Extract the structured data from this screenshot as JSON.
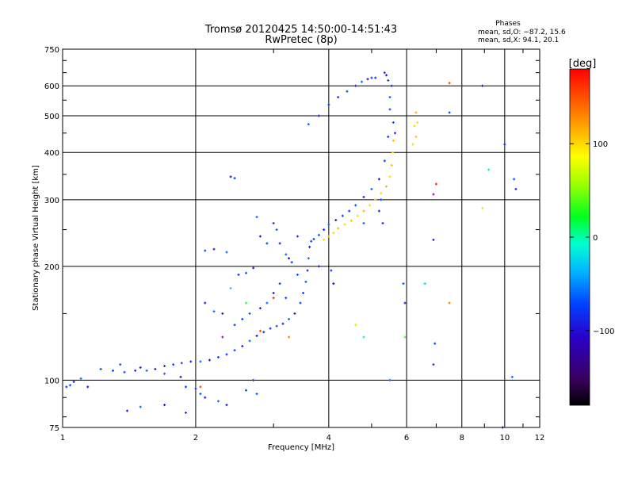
{
  "chart_data": {
    "type": "scatter",
    "title": "Tromsø 20120425 14:50:00-14:51:43",
    "subtitle": "RwPretec (8p)",
    "xlabel": "Frequency [MHz]",
    "ylabel": "Stationary phase Virtual Height [km]",
    "x_scale": "log",
    "y_scale": "log",
    "xlim": [
      1,
      12
    ],
    "ylim": [
      75,
      750
    ],
    "grid": true,
    "x_ticks": [
      1,
      2,
      4,
      6,
      8,
      10,
      12
    ],
    "x_tick_labels": [
      "1",
      "2",
      "4",
      "6",
      "8",
      "10",
      "12"
    ],
    "y_ticks": [
      75,
      100,
      200,
      300,
      400,
      500,
      600,
      750
    ],
    "y_tick_labels": [
      "75",
      "100",
      "200",
      "300",
      "400",
      "500",
      "600",
      "750"
    ],
    "phases_box": {
      "title": "Phases",
      "line1": "mean, sd,O: −87.2, 15.6",
      "line2": "mean, sd,X:  94.1, 20.1"
    },
    "colorbar": {
      "label": "[deg]",
      "range": [
        -180,
        180
      ],
      "ticks": [
        100,
        0,
        -100
      ],
      "tick_labels": [
        "100",
        "0",
        "−100"
      ],
      "colormap": "rainbow"
    },
    "series": [
      {
        "mode": "O",
        "phase_deg": -87,
        "points": [
          [
            1.02,
            96
          ],
          [
            1.04,
            97
          ],
          [
            1.06,
            99
          ],
          [
            1.1,
            101
          ],
          [
            1.14,
            96
          ],
          [
            1.22,
            107
          ],
          [
            1.3,
            106
          ],
          [
            1.38,
            105
          ],
          [
            1.46,
            106
          ],
          [
            1.55,
            106
          ],
          [
            1.62,
            107
          ],
          [
            1.7,
            109
          ],
          [
            1.78,
            110
          ],
          [
            1.86,
            111
          ],
          [
            1.95,
            112
          ],
          [
            2.05,
            112
          ],
          [
            2.15,
            113
          ],
          [
            2.25,
            115
          ],
          [
            2.35,
            117
          ],
          [
            2.45,
            120
          ],
          [
            2.55,
            123
          ],
          [
            2.65,
            127
          ],
          [
            2.75,
            131
          ],
          [
            2.85,
            134
          ],
          [
            2.95,
            137
          ],
          [
            3.05,
            139
          ],
          [
            3.15,
            141
          ],
          [
            3.25,
            145
          ],
          [
            3.35,
            150
          ],
          [
            3.45,
            160
          ],
          [
            3.5,
            170
          ],
          [
            3.55,
            182
          ],
          [
            3.58,
            195
          ],
          [
            3.6,
            210
          ],
          [
            3.62,
            225
          ],
          [
            3.65,
            233
          ],
          [
            3.7,
            236
          ],
          [
            3.8,
            242
          ],
          [
            3.9,
            250
          ],
          [
            4.0,
            258
          ],
          [
            4.15,
            265
          ],
          [
            4.3,
            272
          ],
          [
            4.45,
            280
          ],
          [
            4.6,
            290
          ],
          [
            4.8,
            305
          ],
          [
            5.0,
            320
          ],
          [
            5.2,
            340
          ],
          [
            5.35,
            380
          ],
          [
            5.45,
            440
          ],
          [
            5.5,
            520
          ],
          [
            5.55,
            600
          ],
          [
            3.6,
            475
          ],
          [
            3.8,
            500
          ],
          [
            4.0,
            535
          ],
          [
            4.2,
            560
          ],
          [
            4.4,
            580
          ],
          [
            4.6,
            600
          ],
          [
            4.75,
            615
          ],
          [
            4.9,
            625
          ],
          [
            5.0,
            630
          ],
          [
            5.1,
            630
          ],
          [
            2.1,
            220
          ],
          [
            2.2,
            222
          ],
          [
            2.35,
            218
          ],
          [
            2.4,
            345
          ],
          [
            2.45,
            342
          ],
          [
            2.5,
            190
          ],
          [
            2.6,
            192
          ],
          [
            2.7,
            198
          ],
          [
            2.75,
            270
          ],
          [
            2.8,
            240
          ],
          [
            2.9,
            230
          ],
          [
            3.0,
            260
          ],
          [
            3.05,
            250
          ],
          [
            3.1,
            230
          ],
          [
            3.2,
            215
          ],
          [
            3.25,
            210
          ],
          [
            3.3,
            205
          ],
          [
            3.4,
            240
          ],
          [
            3.4,
            190
          ],
          [
            2.1,
            160
          ],
          [
            2.2,
            152
          ],
          [
            2.3,
            150
          ],
          [
            2.45,
            140
          ],
          [
            2.55,
            145
          ],
          [
            2.65,
            150
          ],
          [
            2.8,
            155
          ],
          [
            2.9,
            160
          ],
          [
            3.0,
            170
          ],
          [
            3.1,
            180
          ],
          [
            3.2,
            165
          ],
          [
            1.35,
            110
          ],
          [
            1.5,
            108
          ],
          [
            1.7,
            104
          ],
          [
            1.85,
            102
          ],
          [
            1.9,
            96
          ],
          [
            2.0,
            95
          ],
          [
            2.05,
            92
          ],
          [
            2.1,
            90
          ],
          [
            2.25,
            88
          ],
          [
            2.35,
            86
          ],
          [
            2.6,
            94
          ],
          [
            2.7,
            100
          ],
          [
            2.75,
            92
          ],
          [
            1.4,
            83
          ],
          [
            1.5,
            85
          ],
          [
            1.7,
            86
          ],
          [
            1.9,
            82
          ],
          [
            5.3,
            260
          ],
          [
            5.25,
            300
          ],
          [
            5.2,
            280
          ],
          [
            5.5,
            560
          ],
          [
            5.4,
            640
          ],
          [
            5.45,
            620
          ],
          [
            5.35,
            650
          ],
          [
            5.6,
            480
          ],
          [
            5.65,
            450
          ],
          [
            4.8,
            260
          ],
          [
            6.9,
            235
          ],
          [
            6.95,
            125
          ],
          [
            6.9,
            110
          ],
          [
            5.9,
            180
          ],
          [
            5.95,
            160
          ],
          [
            5.5,
            100
          ],
          [
            8.9,
            600
          ],
          [
            7.5,
            510
          ],
          [
            10.0,
            420
          ],
          [
            10.5,
            340
          ],
          [
            10.6,
            320
          ],
          [
            10.4,
            102
          ],
          [
            3.8,
            200
          ],
          [
            4.05,
            195
          ]
        ]
      },
      {
        "mode": "X",
        "phase_deg": 94,
        "points": [
          [
            3.9,
            235
          ],
          [
            4.0,
            240
          ],
          [
            4.1,
            245
          ],
          [
            4.2,
            252
          ],
          [
            4.35,
            258
          ],
          [
            4.5,
            264
          ],
          [
            4.65,
            272
          ],
          [
            4.8,
            280
          ],
          [
            4.95,
            290
          ],
          [
            5.1,
            300
          ],
          [
            5.25,
            312
          ],
          [
            5.4,
            325
          ],
          [
            5.5,
            345
          ],
          [
            5.55,
            370
          ],
          [
            5.58,
            400
          ],
          [
            5.6,
            430
          ],
          [
            6.2,
            420
          ],
          [
            6.3,
            440
          ],
          [
            6.35,
            480
          ],
          [
            6.3,
            510
          ],
          [
            6.25,
            470
          ]
        ]
      },
      {
        "mode": "outliers",
        "points": [
          [
            7.5,
            610
          ],
          [
            7.5,
            160
          ],
          [
            6.6,
            180
          ],
          [
            5.95,
            130
          ],
          [
            9.9,
            75
          ],
          [
            8.9,
            285
          ],
          [
            9.2,
            360
          ],
          [
            7.0,
            330
          ],
          [
            6.9,
            310
          ],
          [
            2.8,
            135
          ],
          [
            3.25,
            130
          ],
          [
            2.4,
            175
          ],
          [
            2.6,
            160
          ],
          [
            4.1,
            180
          ],
          [
            4.6,
            140
          ],
          [
            4.8,
            130
          ],
          [
            3.0,
            165
          ],
          [
            2.3,
            130
          ],
          [
            2.05,
            96
          ]
        ]
      }
    ]
  }
}
